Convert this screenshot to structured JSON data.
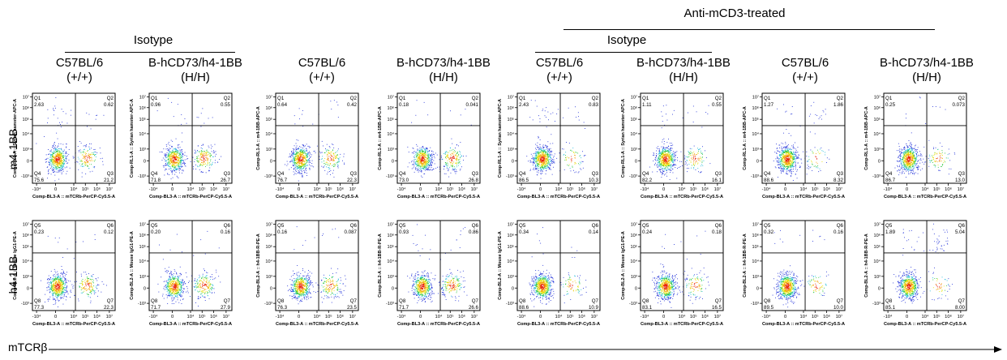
{
  "headers": {
    "treated_label": "Anti-mCD3-treated",
    "isotype_label_left": "Isotype",
    "isotype_label_right": "Isotype"
  },
  "columns": [
    {
      "strain": "C57BL/6",
      "genotype": "(+/+)"
    },
    {
      "strain": "B-hCD73/h4-1BB",
      "genotype": "(H/H)"
    },
    {
      "strain": "C57BL/6",
      "genotype": "(+/+)"
    },
    {
      "strain": "B-hCD73/h4-1BB",
      "genotype": "(H/H)"
    },
    {
      "strain": "C57BL/6",
      "genotype": "(+/+)"
    },
    {
      "strain": "B-hCD73/h4-1BB",
      "genotype": "(H/H)"
    },
    {
      "strain": "C57BL/6",
      "genotype": "(+/+)"
    },
    {
      "strain": "B-hCD73/h4-1BB",
      "genotype": "(H/H)"
    }
  ],
  "row_labels": [
    "m4-1BB",
    "h4-1BB"
  ],
  "x_arrow_label": "mTCRβ",
  "chart_data": {
    "type": "scatter",
    "x_axis_label": "Comp-BL3-A :: mTCRb-PerCP-Cy5.5-A",
    "x_ticks": [
      "-10⁴",
      "0",
      "10⁴",
      "10⁵",
      "10⁶",
      "10⁷"
    ],
    "y_ticks": [
      "10⁷",
      "10⁶",
      "10⁵",
      "10⁴",
      "10³",
      "0",
      "-10³"
    ],
    "rows": [
      {
        "quadrant_labels": [
          "Q1",
          "Q2",
          "Q3",
          "Q4"
        ],
        "panels": [
          {
            "y_axis_label": "Comp-RL1-A :: Syrian hamster-APC-A",
            "q1": "2.63",
            "q2": "0.62",
            "q3": "21.2",
            "q4": "75.6"
          },
          {
            "y_axis_label": "Comp-RL1-A :: Syrian hamster-APC-A",
            "q1": "0.96",
            "q2": "0.55",
            "q3": "26.7",
            "q4": "71.8"
          },
          {
            "y_axis_label": "Comp-RL1-A :: m4-1BB-APC-A",
            "q1": "0.64",
            "q2": "0.42",
            "q3": "22.3",
            "q4": "76.7"
          },
          {
            "y_axis_label": "Comp-RL1-A :: m4-1BB-APC-A",
            "q1": "0.18",
            "q2": "0.041",
            "q3": "26.8",
            "q4": "73.0"
          },
          {
            "y_axis_label": "Comp-RL1-A :: Syrian hamster-APC-A",
            "q1": "2.43",
            "q2": "0.83",
            "q3": "10.3",
            "q4": "86.5"
          },
          {
            "y_axis_label": "Comp-RL1-A :: Syrian hamster-APC-A",
            "q1": "1.11",
            "q2": "0.55",
            "q3": "16.1",
            "q4": "82.2"
          },
          {
            "y_axis_label": "Comp-RL1-A :: m4-1BB-APC-A",
            "q1": "1.27",
            "q2": "1.86",
            "q3": "8.32",
            "q4": "88.6"
          },
          {
            "y_axis_label": "Comp-RL1-A :: m4-1BB-APC-A",
            "q1": "0.25",
            "q2": "0.073",
            "q3": "13.0",
            "q4": "86.7"
          }
        ]
      },
      {
        "quadrant_labels": [
          "Q5",
          "Q6",
          "Q7",
          "Q8"
        ],
        "panels": [
          {
            "y_axis_label": "Comp-BL2-A :: Mouse IgG1-PE-A",
            "q1": "0.23",
            "q2": "0.12",
            "q3": "22.3",
            "q4": "77.3"
          },
          {
            "y_axis_label": "Comp-BL2-A :: Mouse IgG1-PE-A",
            "q1": "0.20",
            "q2": "0.16",
            "q3": "27.9",
            "q4": "71.7"
          },
          {
            "y_axis_label": "Comp-BL2-A :: h4-1BB-R-PE-A",
            "q1": "0.16",
            "q2": "0.087",
            "q3": "23.5",
            "q4": "76.3"
          },
          {
            "y_axis_label": "Comp-BL2-A :: h4-1BB-R-PE-A",
            "q1": "0.93",
            "q2": "0.86",
            "q3": "26.6",
            "q4": "71.7"
          },
          {
            "y_axis_label": "Comp-BL2-A :: Mouse IgG1-PE-A",
            "q1": "0.34",
            "q2": "0.14",
            "q3": "10.9",
            "q4": "88.6"
          },
          {
            "y_axis_label": "Comp-BL2-A :: Mouse IgG1-PE-A",
            "q1": "0.24",
            "q2": "0.18",
            "q3": "16.5",
            "q4": "83.1"
          },
          {
            "y_axis_label": "Comp-BL2-A :: h4-1BB-R-PE-A",
            "q1": "0.32",
            "q2": "0.16",
            "q3": "10.0",
            "q4": "89.5"
          },
          {
            "y_axis_label": "Comp-BL2-A :: h4-1BB-R-PE-A",
            "q1": "1.89",
            "q2": "5.04",
            "q3": "8.00",
            "q4": "85.1"
          }
        ]
      }
    ]
  }
}
